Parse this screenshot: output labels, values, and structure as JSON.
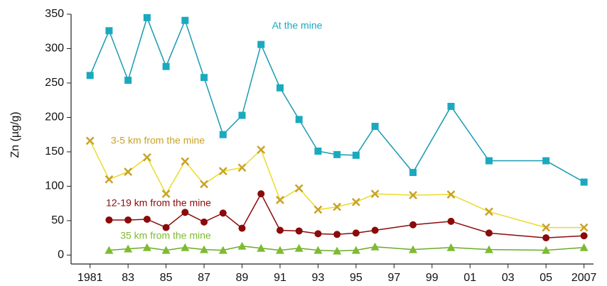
{
  "chart_data": {
    "type": "line",
    "y_label": "Zn (µg/g)",
    "x": [
      1981,
      1982,
      1983,
      1984,
      1985,
      1986,
      1987,
      1988,
      1989,
      1990,
      1991,
      1992,
      1993,
      1994,
      1995,
      1996,
      1998,
      2000,
      2002,
      2005,
      2007
    ],
    "series": [
      {
        "name": "At the mine",
        "color": "#1a9bb0",
        "marker_color": "#1aaabf",
        "marker": "square",
        "values": [
          261,
          326,
          254,
          345,
          274,
          341,
          258,
          175,
          203,
          306,
          243,
          197,
          151,
          146,
          145,
          187,
          120,
          216,
          137,
          137,
          106
        ]
      },
      {
        "name": "3-5 km from the mine",
        "color": "#e8dc2a",
        "marker_color": "#c9a227",
        "label_color": "#c9a227",
        "marker": "cross",
        "values": [
          166,
          110,
          121,
          142,
          89,
          136,
          103,
          122,
          127,
          153,
          80,
          97,
          66,
          70,
          77,
          89,
          87,
          88,
          63,
          40,
          40
        ]
      },
      {
        "name": "12-19 km from the mine",
        "color": "#8b0a0a",
        "marker_color": "#8b0a0a",
        "marker": "circle",
        "values": [
          null,
          51,
          51,
          52,
          40,
          62,
          48,
          61,
          39,
          89,
          36,
          35,
          31,
          30,
          32,
          36,
          44,
          49,
          32,
          25,
          28
        ]
      },
      {
        "name": "35 km from the mine",
        "color": "#6aab2a",
        "marker_color": "#7dbb30",
        "marker": "triangle",
        "values": [
          null,
          7,
          9,
          11,
          7,
          11,
          8,
          7,
          13,
          10,
          7,
          10,
          7,
          6,
          7,
          12,
          8,
          11,
          8,
          7,
          11
        ]
      }
    ],
    "xlim": [
      1980,
      2007.5
    ],
    "ylim": [
      -13,
      350
    ],
    "xticks": [
      1981,
      {
        "value": 1983,
        "label": "83"
      },
      {
        "value": 1985,
        "label": "85"
      },
      {
        "value": 1987,
        "label": "87"
      },
      {
        "value": 1989,
        "label": "89"
      },
      {
        "value": 1991,
        "label": "91"
      },
      {
        "value": 1993,
        "label": "93"
      },
      {
        "value": 1995,
        "label": "95"
      },
      {
        "value": 1997,
        "label": "97"
      },
      {
        "value": 1999,
        "label": "99"
      },
      {
        "value": 2001,
        "label": "01"
      },
      {
        "value": 2003,
        "label": "03"
      },
      {
        "value": 2005,
        "label": "05"
      },
      2007
    ],
    "yticks": [
      0,
      50,
      100,
      150,
      200,
      250,
      300,
      350
    ],
    "grid": false
  }
}
